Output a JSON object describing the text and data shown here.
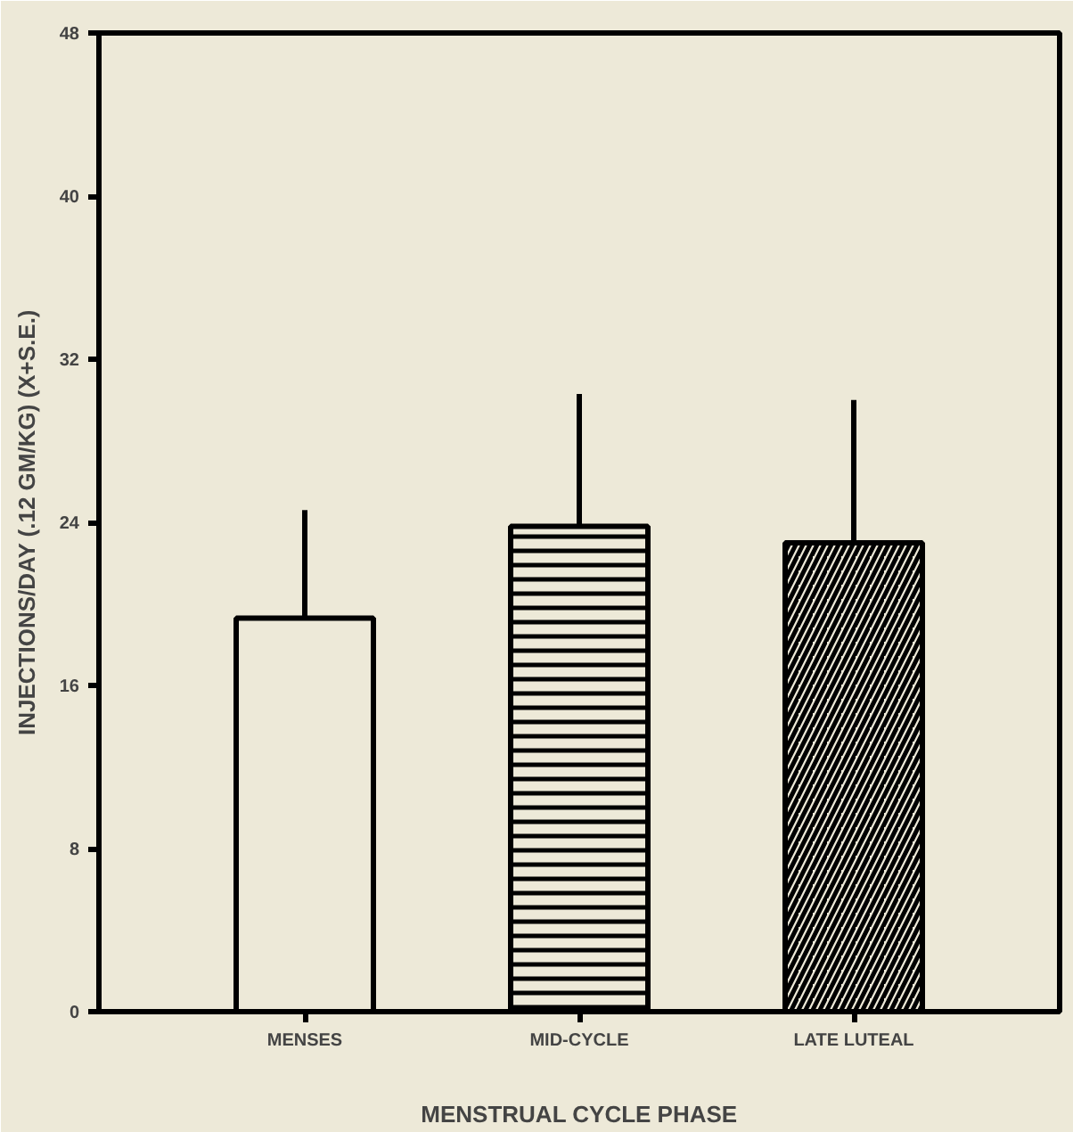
{
  "chart_data": {
    "type": "bar",
    "xlabel": "MENSTRUAL CYCLE PHASE",
    "ylabel": "INJECTIONS/DAY (.12 GM/KG) (X+S.E.)",
    "categories": [
      "MENSES",
      "MID-CYCLE",
      "LATE LUTEAL"
    ],
    "values": [
      19.3,
      23.8,
      23.0
    ],
    "errors": [
      5.3,
      6.5,
      7.0
    ],
    "color": "#000000",
    "ylim": [
      0,
      48
    ],
    "yticks": [
      0,
      8,
      16,
      24,
      32,
      40,
      48
    ],
    "grid": false
  }
}
